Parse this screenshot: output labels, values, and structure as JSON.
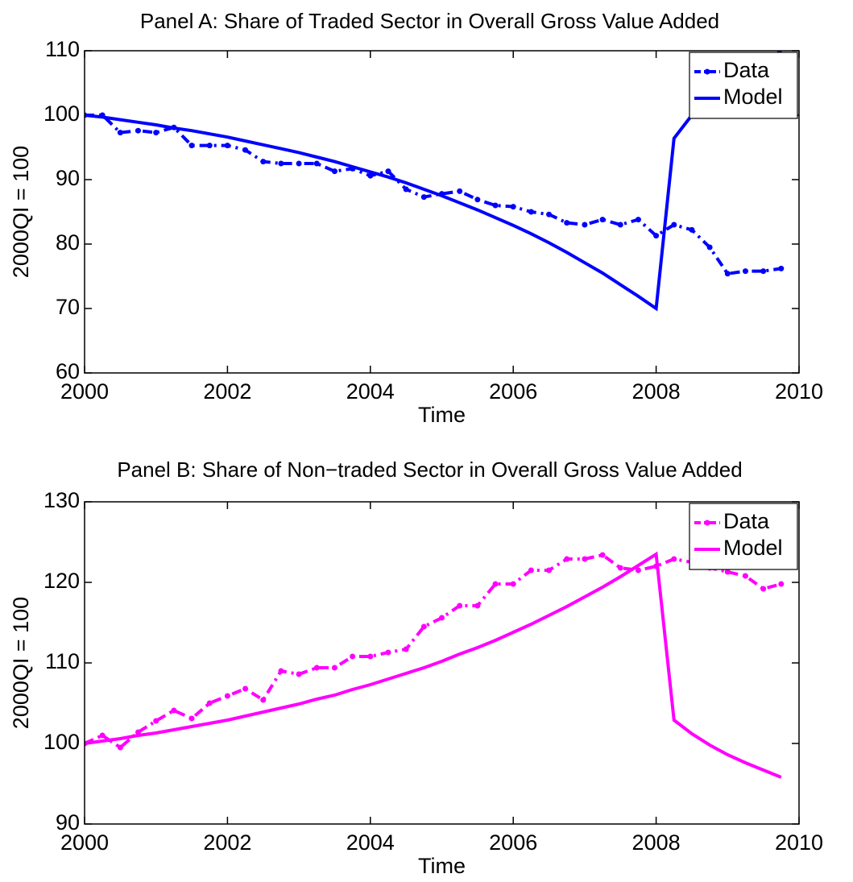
{
  "chart_data": [
    {
      "type": "line",
      "title": "Panel A: Share of Traded Sector in Overall Gross Value Added",
      "xlabel": "Time",
      "ylabel": "2000QI = 100",
      "x": [
        2000,
        2000.25,
        2000.5,
        2000.75,
        2001,
        2001.25,
        2001.5,
        2001.75,
        2002,
        2002.25,
        2002.5,
        2002.75,
        2003,
        2003.25,
        2003.5,
        2003.75,
        2004,
        2004.25,
        2004.5,
        2004.75,
        2005,
        2005.25,
        2005.5,
        2005.75,
        2006,
        2006.25,
        2006.5,
        2006.75,
        2007,
        2007.25,
        2007.5,
        2007.75,
        2008,
        2008.25,
        2008.5,
        2008.75,
        2009,
        2009.25,
        2009.5,
        2009.75
      ],
      "series": [
        {
          "name": "Data",
          "color": "#0000ff",
          "linestyle": "dashdot",
          "marker": "circle",
          "values": [
            100,
            100,
            97.3,
            97.6,
            97.3,
            98.1,
            95.3,
            95.3,
            95.3,
            94.6,
            92.8,
            92.5,
            92.5,
            92.5,
            91.3,
            91.7,
            90.6,
            91.3,
            88.5,
            87.3,
            87.8,
            88.2,
            86.9,
            86.0,
            85.8,
            85.0,
            84.6,
            83.3,
            83.0,
            83.8,
            83.0,
            83.8,
            81.3,
            83.0,
            82.2,
            79.5,
            75.4,
            75.8,
            75.8,
            76.2
          ]
        },
        {
          "name": "Model",
          "color": "#0000ff",
          "linestyle": "solid",
          "values": [
            100,
            99.7,
            99.3,
            98.9,
            98.5,
            98.0,
            97.6,
            97.1,
            96.6,
            96.0,
            95.4,
            94.8,
            94.2,
            93.5,
            92.8,
            92.0,
            91.2,
            90.4,
            89.5,
            88.5,
            87.5,
            86.4,
            85.3,
            84.1,
            82.9,
            81.6,
            80.2,
            78.7,
            77.1,
            75.5,
            73.7,
            71.9,
            70.0,
            96.4,
            100,
            102,
            104,
            106,
            108,
            110
          ]
        }
      ],
      "xlim": [
        2000,
        2010
      ],
      "xticks": [
        2000,
        2002,
        2004,
        2006,
        2008,
        2010
      ],
      "ylim": [
        60,
        110
      ],
      "yticks": [
        60,
        70,
        80,
        90,
        100,
        110
      ],
      "grid": false,
      "legend": "upper right"
    },
    {
      "type": "line",
      "title": "Panel B: Share of Non−traded Sector in Overall Gross Value Added",
      "xlabel": "Time",
      "ylabel": "2000QI = 100",
      "x": [
        2000,
        2000.25,
        2000.5,
        2000.75,
        2001,
        2001.25,
        2001.5,
        2001.75,
        2002,
        2002.25,
        2002.5,
        2002.75,
        2003,
        2003.25,
        2003.5,
        2003.75,
        2004,
        2004.25,
        2004.5,
        2004.75,
        2005,
        2005.25,
        2005.5,
        2005.75,
        2006,
        2006.25,
        2006.5,
        2006.75,
        2007,
        2007.25,
        2007.5,
        2007.75,
        2008,
        2008.25,
        2008.5,
        2008.75,
        2009,
        2009.25,
        2009.5,
        2009.75
      ],
      "series": [
        {
          "name": "Data",
          "color": "#ff00ff",
          "linestyle": "dashdot",
          "marker": "circle",
          "values": [
            100,
            101,
            99.5,
            101.4,
            102.8,
            104.1,
            103.1,
            105,
            105.9,
            106.8,
            105.4,
            109,
            108.6,
            109.4,
            109.4,
            110.8,
            110.8,
            111.3,
            111.7,
            114.5,
            115.6,
            117.1,
            117.1,
            119.8,
            119.8,
            121.5,
            121.5,
            122.9,
            122.9,
            123.4,
            121.8,
            121.5,
            122,
            122.9,
            122.5,
            121.8,
            121.3,
            120.8,
            119.2,
            119.8
          ]
        },
        {
          "name": "Model",
          "color": "#ff00ff",
          "linestyle": "solid",
          "values": [
            100,
            100.3,
            100.6,
            101.0,
            101.3,
            101.7,
            102.1,
            102.5,
            102.9,
            103.4,
            103.9,
            104.4,
            104.9,
            105.5,
            106.0,
            106.7,
            107.3,
            108.0,
            108.7,
            109.4,
            110.2,
            111.1,
            111.9,
            112.8,
            113.8,
            114.8,
            115.9,
            117.0,
            118.2,
            119.4,
            120.7,
            122.1,
            123.5,
            102.9,
            101.2,
            99.8,
            98.6,
            97.6,
            96.7,
            95.8
          ]
        }
      ],
      "xlim": [
        2000,
        2010
      ],
      "xticks": [
        2000,
        2002,
        2004,
        2006,
        2008,
        2010
      ],
      "ylim": [
        90,
        130
      ],
      "yticks": [
        90,
        100,
        110,
        120,
        130
      ],
      "grid": false,
      "legend": "upper right"
    }
  ]
}
